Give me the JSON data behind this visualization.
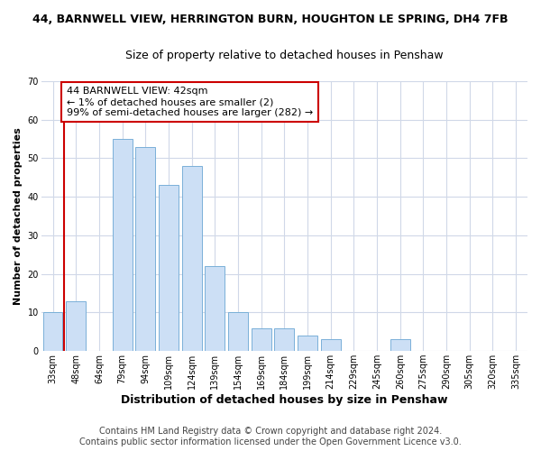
{
  "title_line1": "44, BARNWELL VIEW, HERRINGTON BURN, HOUGHTON LE SPRING, DH4 7FB",
  "title_line2": "Size of property relative to detached houses in Penshaw",
  "xlabel": "Distribution of detached houses by size in Penshaw",
  "ylabel": "Number of detached properties",
  "categories": [
    "33sqm",
    "48sqm",
    "64sqm",
    "79sqm",
    "94sqm",
    "109sqm",
    "124sqm",
    "139sqm",
    "154sqm",
    "169sqm",
    "184sqm",
    "199sqm",
    "214sqm",
    "229sqm",
    "245sqm",
    "260sqm",
    "275sqm",
    "290sqm",
    "305sqm",
    "320sqm",
    "335sqm"
  ],
  "values": [
    10,
    13,
    0,
    55,
    53,
    43,
    48,
    22,
    10,
    6,
    6,
    4,
    3,
    0,
    0,
    3,
    0,
    0,
    0,
    0,
    0
  ],
  "bar_color": "#ccdff5",
  "bar_edge_color": "#7ab0d8",
  "annotation_box_color": "#ffffff",
  "annotation_border_color": "#cc0000",
  "annotation_text_line1": "44 BARNWELL VIEW: 42sqm",
  "annotation_text_line2": "← 1% of detached houses are smaller (2)",
  "annotation_text_line3": "99% of semi-detached houses are larger (282) →",
  "ylim": [
    0,
    70
  ],
  "yticks": [
    0,
    10,
    20,
    30,
    40,
    50,
    60,
    70
  ],
  "footer_line1": "Contains HM Land Registry data © Crown copyright and database right 2024.",
  "footer_line2": "Contains public sector information licensed under the Open Government Licence v3.0.",
  "bg_color": "#ffffff",
  "plot_bg_color": "#ffffff",
  "grid_color": "#d0d8e8",
  "title1_fontsize": 9,
  "title2_fontsize": 9,
  "xlabel_fontsize": 9,
  "ylabel_fontsize": 8,
  "tick_fontsize": 7,
  "annotation_fontsize": 8,
  "footer_fontsize": 7
}
